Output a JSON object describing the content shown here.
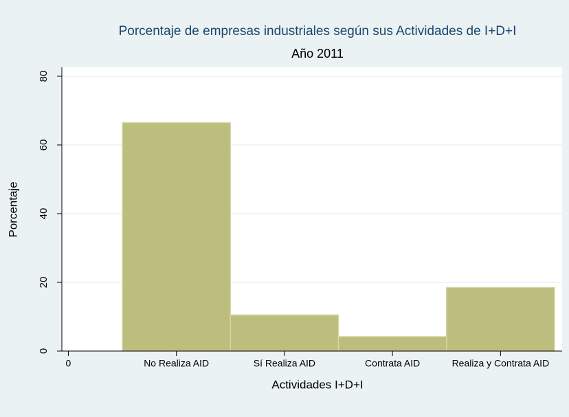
{
  "chart_data": {
    "type": "bar",
    "title": "Porcentaje de empresas industriales según sus Actividades de I+D+I",
    "subtitle": "Año 2011",
    "x_label": "Actividades I+D+I",
    "y_label": "Porcentaje",
    "x": [
      1,
      2,
      3,
      4
    ],
    "values": [
      66.5,
      10.5,
      4.2,
      18.5
    ],
    "color": "#bdbd7e",
    "xlim": [
      -0.06,
      4.57
    ],
    "xticks": [
      0,
      {
        "value": 1,
        "label": "No Realiza AID"
      },
      {
        "value": 2,
        "label": "Sí Realiza AID"
      },
      {
        "value": 3,
        "label": "Contrata AID"
      },
      {
        "value": 4,
        "label": "Realiza y Contrata AID"
      }
    ],
    "ylim": [
      0,
      82.6
    ],
    "yticks": [
      0,
      20,
      40,
      60,
      80
    ],
    "grid": true
  }
}
